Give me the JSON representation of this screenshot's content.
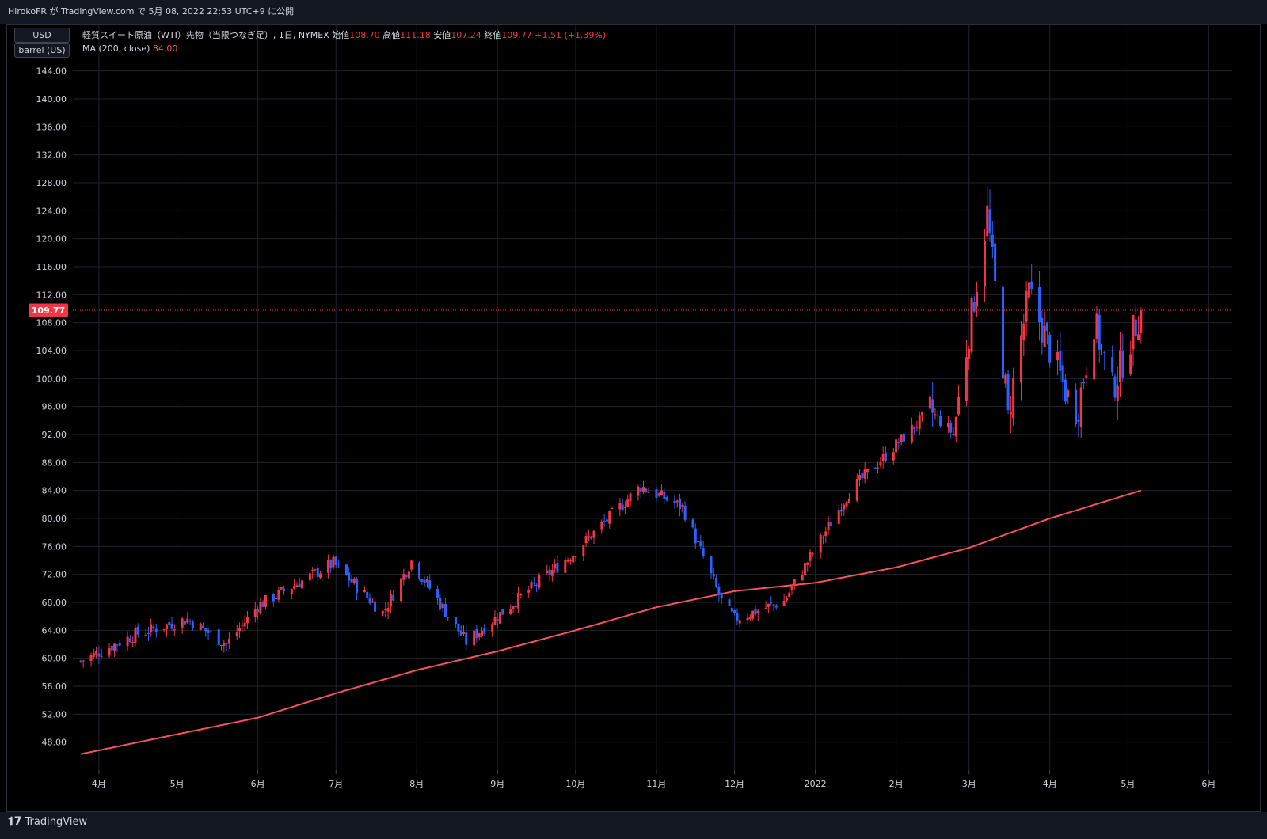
{
  "header": {
    "publisher": "HirokoFR が TradingView.com で 5月 08, 2022 22:53 UTC+9 に公開"
  },
  "scale": {
    "currency": "USD",
    "unit": "barrel (US)"
  },
  "legend": {
    "symbol": "軽質スイート原油（WTI）先物（当限つなぎ足）, 1日, NYMEX",
    "open_label": "始値",
    "open": "108.70",
    "high_label": "高値",
    "high": "111.18",
    "low_label": "安値",
    "low": "107.24",
    "close_label": "終値",
    "close": "109.77",
    "change": "+1.51 (+1.39%)",
    "ma_label": "MA (200, close)",
    "ma_value": "84.00"
  },
  "last_price_tag": "109.77",
  "footer": {
    "brand": "TradingView",
    "brand_icon": "tradingview-logo-icon"
  },
  "colors": {
    "up": "#f23645",
    "down": "#2962ff",
    "ma": "#f7525f",
    "grid": "#1e222d",
    "background": "#000000"
  },
  "chart_data": {
    "type": "candlestick",
    "y_axis_ticks": [
      "48.00",
      "52.00",
      "56.00",
      "60.00",
      "64.00",
      "68.00",
      "72.00",
      "76.00",
      "80.00",
      "84.00",
      "88.00",
      "92.00",
      "96.00",
      "100.00",
      "104.00",
      "108.00",
      "112.00",
      "116.00",
      "120.00",
      "124.00",
      "128.00",
      "132.00",
      "136.00",
      "140.00",
      "144.00"
    ],
    "ylim": [
      44,
      146
    ],
    "x_axis_ticks": [
      "4月",
      "5月",
      "6月",
      "7月",
      "8月",
      "9月",
      "10月",
      "11月",
      "12月",
      "2022",
      "2月",
      "3月",
      "4月",
      "5月",
      "6月"
    ],
    "close_series": {
      "name": "軽質スイート原油（WTI）先物（当限つなぎ足）",
      "anchors": [
        [
          "2021-03-25",
          59.6
        ],
        [
          "2021-04-15",
          63.4
        ],
        [
          "2021-05-05",
          65.6
        ],
        [
          "2021-05-20",
          62.0
        ],
        [
          "2021-06-01",
          67.5
        ],
        [
          "2021-06-30",
          73.6
        ],
        [
          "2021-07-19",
          66.5
        ],
        [
          "2021-07-30",
          73.9
        ],
        [
          "2021-08-20",
          62.3
        ],
        [
          "2021-09-30",
          75.0
        ],
        [
          "2021-10-26",
          84.6
        ],
        [
          "2021-11-11",
          81.6
        ],
        [
          "2021-11-26",
          68.2
        ],
        [
          "2021-12-01",
          65.6
        ],
        [
          "2021-12-20",
          68.2
        ],
        [
          "2022-01-14",
          83.8
        ],
        [
          "2022-02-14",
          95.4
        ],
        [
          "2022-02-23",
          92.1
        ],
        [
          "2022-03-08",
          123.7
        ],
        [
          "2022-03-16",
          95.0
        ],
        [
          "2022-03-24",
          112.3
        ],
        [
          "2022-04-11",
          94.3
        ],
        [
          "2022-04-18",
          108.2
        ],
        [
          "2022-04-25",
          98.5
        ],
        [
          "2022-05-06",
          109.77
        ]
      ]
    },
    "ma200": {
      "name": "MA (200, close)",
      "anchors": [
        [
          "2021-03-25",
          46.3
        ],
        [
          "2021-06-01",
          51.5
        ],
        [
          "2021-07-01",
          55.0
        ],
        [
          "2021-08-01",
          58.3
        ],
        [
          "2021-09-01",
          61.0
        ],
        [
          "2021-10-01",
          64.0
        ],
        [
          "2021-11-01",
          67.3
        ],
        [
          "2021-12-01",
          69.6
        ],
        [
          "2022-01-01",
          70.8
        ],
        [
          "2022-02-01",
          73.0
        ],
        [
          "2022-03-01",
          75.8
        ],
        [
          "2022-04-01",
          80.0
        ],
        [
          "2022-05-06",
          84.0
        ]
      ]
    },
    "last_close": 109.77,
    "grid": true
  }
}
